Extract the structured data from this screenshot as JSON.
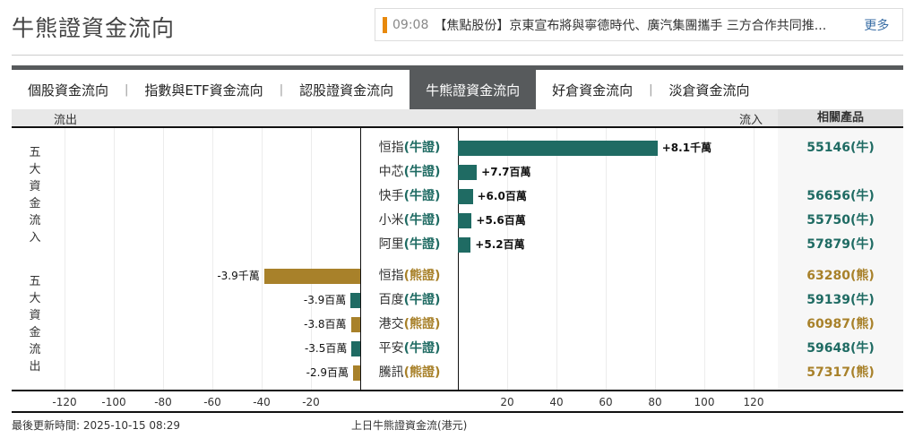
{
  "header": {
    "title": "牛熊證資金流向"
  },
  "news": {
    "time": "09:08",
    "text": "【焦點股份】京東宣布將與寧德時代、廣汽集團攜手 三方合作共同推...",
    "more_label": "更多",
    "accent_color": "#e8890c"
  },
  "tabs": [
    {
      "label": "個股資金流向",
      "active": false
    },
    {
      "label": "指數與ETF資金流向",
      "active": false
    },
    {
      "label": "認股證資金流向",
      "active": false
    },
    {
      "label": "牛熊證資金流向",
      "active": true
    },
    {
      "label": "好倉資金流向",
      "active": false
    },
    {
      "label": "淡倉資金流向",
      "active": false
    }
  ],
  "tab_separator": "|",
  "table_header": {
    "outflow": "流出",
    "inflow": "流入",
    "related": "相關產品"
  },
  "groups": {
    "inflow_label": [
      "五",
      "大",
      "資",
      "金",
      "流",
      "入"
    ],
    "outflow_label": [
      "五",
      "大",
      "資",
      "金",
      "流",
      "出"
    ]
  },
  "colors": {
    "bull": "#1f6b63",
    "bear": "#a8812a"
  },
  "chart_data": {
    "type": "bar",
    "orientation": "horizontal-diverging",
    "title": "上日牛熊證資金流(港元)",
    "xlabel": "上日牛熊證資金流(港元)",
    "unit": "百萬港元",
    "xlim_left": [
      -120,
      0
    ],
    "xlim_right": [
      0,
      120
    ],
    "x_ticks_left": [
      "-120",
      "-100",
      "-80",
      "-60",
      "-40",
      "-20"
    ],
    "x_ticks_right": [
      "20",
      "40",
      "60",
      "80",
      "100",
      "120"
    ],
    "grid": true,
    "categories": [
      "恒指(牛證)",
      "中芯(牛證)",
      "快手(牛證)",
      "小米(牛證)",
      "阿里(牛證)",
      "恒指(熊證)",
      "百度(牛證)",
      "港交(熊證)",
      "平安(牛證)",
      "騰訊(熊證)"
    ],
    "values": [
      81,
      7.7,
      6.0,
      5.6,
      5.2,
      -39,
      -3.9,
      -3.8,
      -3.5,
      -2.9
    ],
    "series": [
      {
        "name": "五大資金流入",
        "values": [
          81,
          7.7,
          6.0,
          5.6,
          5.2
        ]
      },
      {
        "name": "五大資金流出",
        "values": [
          -39,
          -3.9,
          -3.8,
          -3.5,
          -2.9
        ]
      }
    ]
  },
  "inflows": [
    {
      "name": "恒指",
      "type": "(牛證)",
      "kind": "bull",
      "value_label": "+8.1千萬",
      "value": 81,
      "related": "55146(牛)",
      "related_kind": "bull"
    },
    {
      "name": "中芯",
      "type": "(牛證)",
      "kind": "bull",
      "value_label": "+7.7百萬",
      "value": 7.7,
      "related": "",
      "related_kind": "bull"
    },
    {
      "name": "快手",
      "type": "(牛證)",
      "kind": "bull",
      "value_label": "+6.0百萬",
      "value": 6.0,
      "related": "56656(牛)",
      "related_kind": "bull"
    },
    {
      "name": "小米",
      "type": "(牛證)",
      "kind": "bull",
      "value_label": "+5.6百萬",
      "value": 5.6,
      "related": "55750(牛)",
      "related_kind": "bull"
    },
    {
      "name": "阿里",
      "type": "(牛證)",
      "kind": "bull",
      "value_label": "+5.2百萬",
      "value": 5.2,
      "related": "57879(牛)",
      "related_kind": "bull"
    }
  ],
  "outflows": [
    {
      "name": "恒指",
      "type": "(熊證)",
      "kind": "bear",
      "value_label": "-3.9千萬",
      "value": 39,
      "related": "63280(熊)",
      "related_kind": "bear"
    },
    {
      "name": "百度",
      "type": "(牛證)",
      "kind": "bull",
      "value_label": "-3.9百萬",
      "value": 3.9,
      "related": "59139(牛)",
      "related_kind": "bull"
    },
    {
      "name": "港交",
      "type": "(熊證)",
      "kind": "bear",
      "value_label": "-3.8百萬",
      "value": 3.8,
      "related": "60987(熊)",
      "related_kind": "bear"
    },
    {
      "name": "平安",
      "type": "(牛證)",
      "kind": "bull",
      "value_label": "-3.5百萬",
      "value": 3.5,
      "related": "59648(牛)",
      "related_kind": "bull"
    },
    {
      "name": "騰訊",
      "type": "(熊證)",
      "kind": "bear",
      "value_label": "-2.9百萬",
      "value": 2.9,
      "related": "57317(熊)",
      "related_kind": "bear"
    }
  ],
  "footer": {
    "updated": "最後更新時間: 2025-10-15 08:29",
    "caption": "上日牛熊證資金流(港元)"
  }
}
